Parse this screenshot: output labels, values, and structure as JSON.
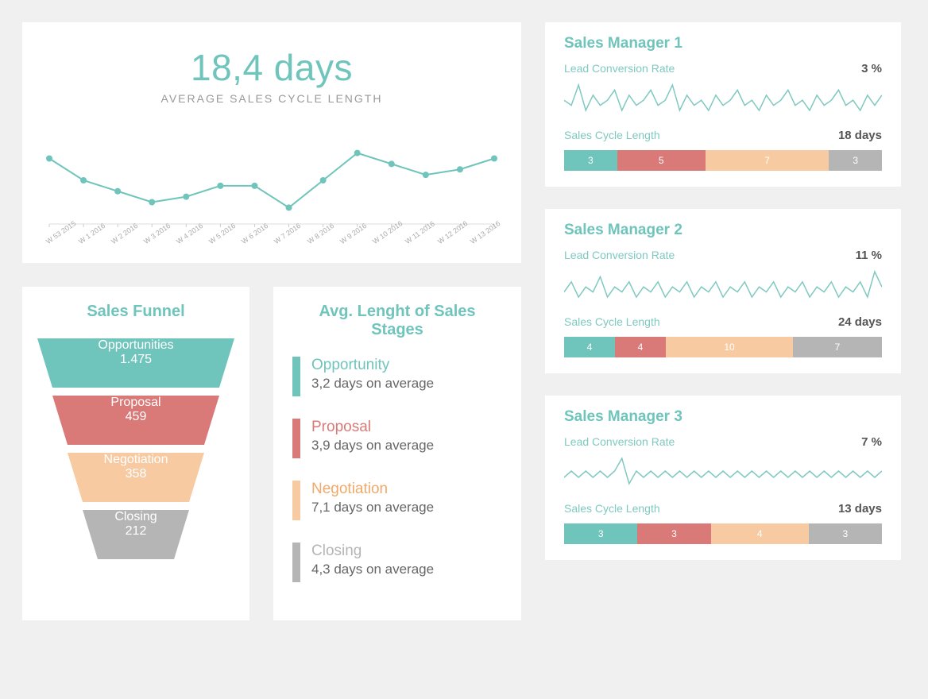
{
  "colors": {
    "teal": "#6fc4bc",
    "teal_line": "#7fc9c1",
    "coral": "#d97a79",
    "peach": "#f7caa2",
    "gray": "#b5b5b5",
    "bg": "#f0f0f0",
    "card_bg": "#ffffff",
    "text_muted": "#999999",
    "text_body": "#666666"
  },
  "avg_cycle": {
    "value": "18,4 days",
    "label": "AVERAGE SALES CYCLE LENGTH",
    "title_fontsize": 46,
    "label_fontsize": 14,
    "line_color": "#6fc4bc",
    "marker_radius": 4,
    "series": [
      22,
      18,
      16,
      14,
      15,
      17,
      17,
      13,
      18,
      23,
      21,
      19,
      20,
      22
    ],
    "x_labels": [
      "W 53 2015",
      "W 1 2016",
      "W 2 2016",
      "W 3 2016",
      "W 4 2016",
      "W 5 2016",
      "W 6 2016",
      "W 7 2016",
      "W 8 2016",
      "W 9 2016",
      "W 10 2016",
      "W 11 2016",
      "W 12 2016",
      "W 13 2016"
    ],
    "ylim": [
      10,
      26
    ]
  },
  "funnel": {
    "title": "Sales Funnel",
    "segments": [
      {
        "label": "Opportunities",
        "value": "1.475",
        "color": "#6fc4bc",
        "top_w": 248,
        "bot_w": 210
      },
      {
        "label": "Proposal",
        "value": "459",
        "color": "#d97a79",
        "top_w": 210,
        "bot_w": 172
      },
      {
        "label": "Negotiation",
        "value": "358",
        "color": "#f7caa2",
        "top_w": 172,
        "bot_w": 134
      },
      {
        "label": "Closing",
        "value": "212",
        "color": "#b5b5b5",
        "top_w": 134,
        "bot_w": 96
      }
    ]
  },
  "stages": {
    "title": "Avg. Lenght of Sales Stages",
    "items": [
      {
        "name": "Opportunity",
        "avg": "3,2 days on average",
        "color": "#6fc4bc",
        "name_color": "#6fc4bc"
      },
      {
        "name": "Proposal",
        "avg": "3,9 days on average",
        "color": "#d97a79",
        "name_color": "#d97a79"
      },
      {
        "name": "Negotiation",
        "avg": "7,1 days on average",
        "color": "#f7caa2",
        "name_color": "#f0a968"
      },
      {
        "name": "Closing",
        "avg": "4,3 days on average",
        "color": "#b5b5b5",
        "name_color": "#b5b5b5"
      }
    ]
  },
  "managers": [
    {
      "title": "Sales Manager 1",
      "lead_label": "Lead Conversion Rate",
      "lead_value": "3 %",
      "cycle_label": "Sales Cycle Length",
      "cycle_value": "18 days",
      "spark": [
        6,
        5,
        9,
        4,
        7,
        5,
        6,
        8,
        4,
        7,
        5,
        6,
        8,
        5,
        6,
        9,
        4,
        7,
        5,
        6,
        4,
        7,
        5,
        6,
        8,
        5,
        6,
        4,
        7,
        5,
        6,
        8,
        5,
        6,
        4,
        7,
        5,
        6,
        8,
        5,
        6,
        4,
        7,
        5,
        7
      ],
      "spark_color": "#7fc9c1",
      "bar": [
        {
          "v": 3,
          "color": "#6fc4bc"
        },
        {
          "v": 5,
          "color": "#d97a79"
        },
        {
          "v": 7,
          "color": "#f7caa2"
        },
        {
          "v": 3,
          "color": "#b5b5b5"
        }
      ]
    },
    {
      "title": "Sales Manager 2",
      "lead_label": "Lead Conversion Rate",
      "lead_value": "11 %",
      "cycle_label": "Sales Cycle Length",
      "cycle_value": "24 days",
      "spark": [
        5,
        7,
        4,
        6,
        5,
        8,
        4,
        6,
        5,
        7,
        4,
        6,
        5,
        7,
        4,
        6,
        5,
        7,
        4,
        6,
        5,
        7,
        4,
        6,
        5,
        7,
        4,
        6,
        5,
        7,
        4,
        6,
        5,
        7,
        4,
        6,
        5,
        7,
        4,
        6,
        5,
        7,
        4,
        9,
        6
      ],
      "spark_color": "#7fc9c1",
      "bar": [
        {
          "v": 4,
          "color": "#6fc4bc"
        },
        {
          "v": 4,
          "color": "#d97a79"
        },
        {
          "v": 10,
          "color": "#f7caa2"
        },
        {
          "v": 7,
          "color": "#b5b5b5"
        }
      ]
    },
    {
      "title": "Sales Manager 3",
      "lead_label": "Lead Conversion Rate",
      "lead_value": "7 %",
      "cycle_label": "Sales Cycle Length",
      "cycle_value": "13 days",
      "spark": [
        5,
        6,
        5,
        6,
        5,
        6,
        5,
        6,
        8,
        4,
        6,
        5,
        6,
        5,
        6,
        5,
        6,
        5,
        6,
        5,
        6,
        5,
        6,
        5,
        6,
        5,
        6,
        5,
        6,
        5,
        6,
        5,
        6,
        5,
        6,
        5,
        6,
        5,
        6,
        5,
        6,
        5,
        6,
        5,
        6
      ],
      "spark_color": "#7fc9c1",
      "bar": [
        {
          "v": 3,
          "color": "#6fc4bc"
        },
        {
          "v": 3,
          "color": "#d97a79"
        },
        {
          "v": 4,
          "color": "#f7caa2"
        },
        {
          "v": 3,
          "color": "#b5b5b5"
        }
      ]
    }
  ]
}
